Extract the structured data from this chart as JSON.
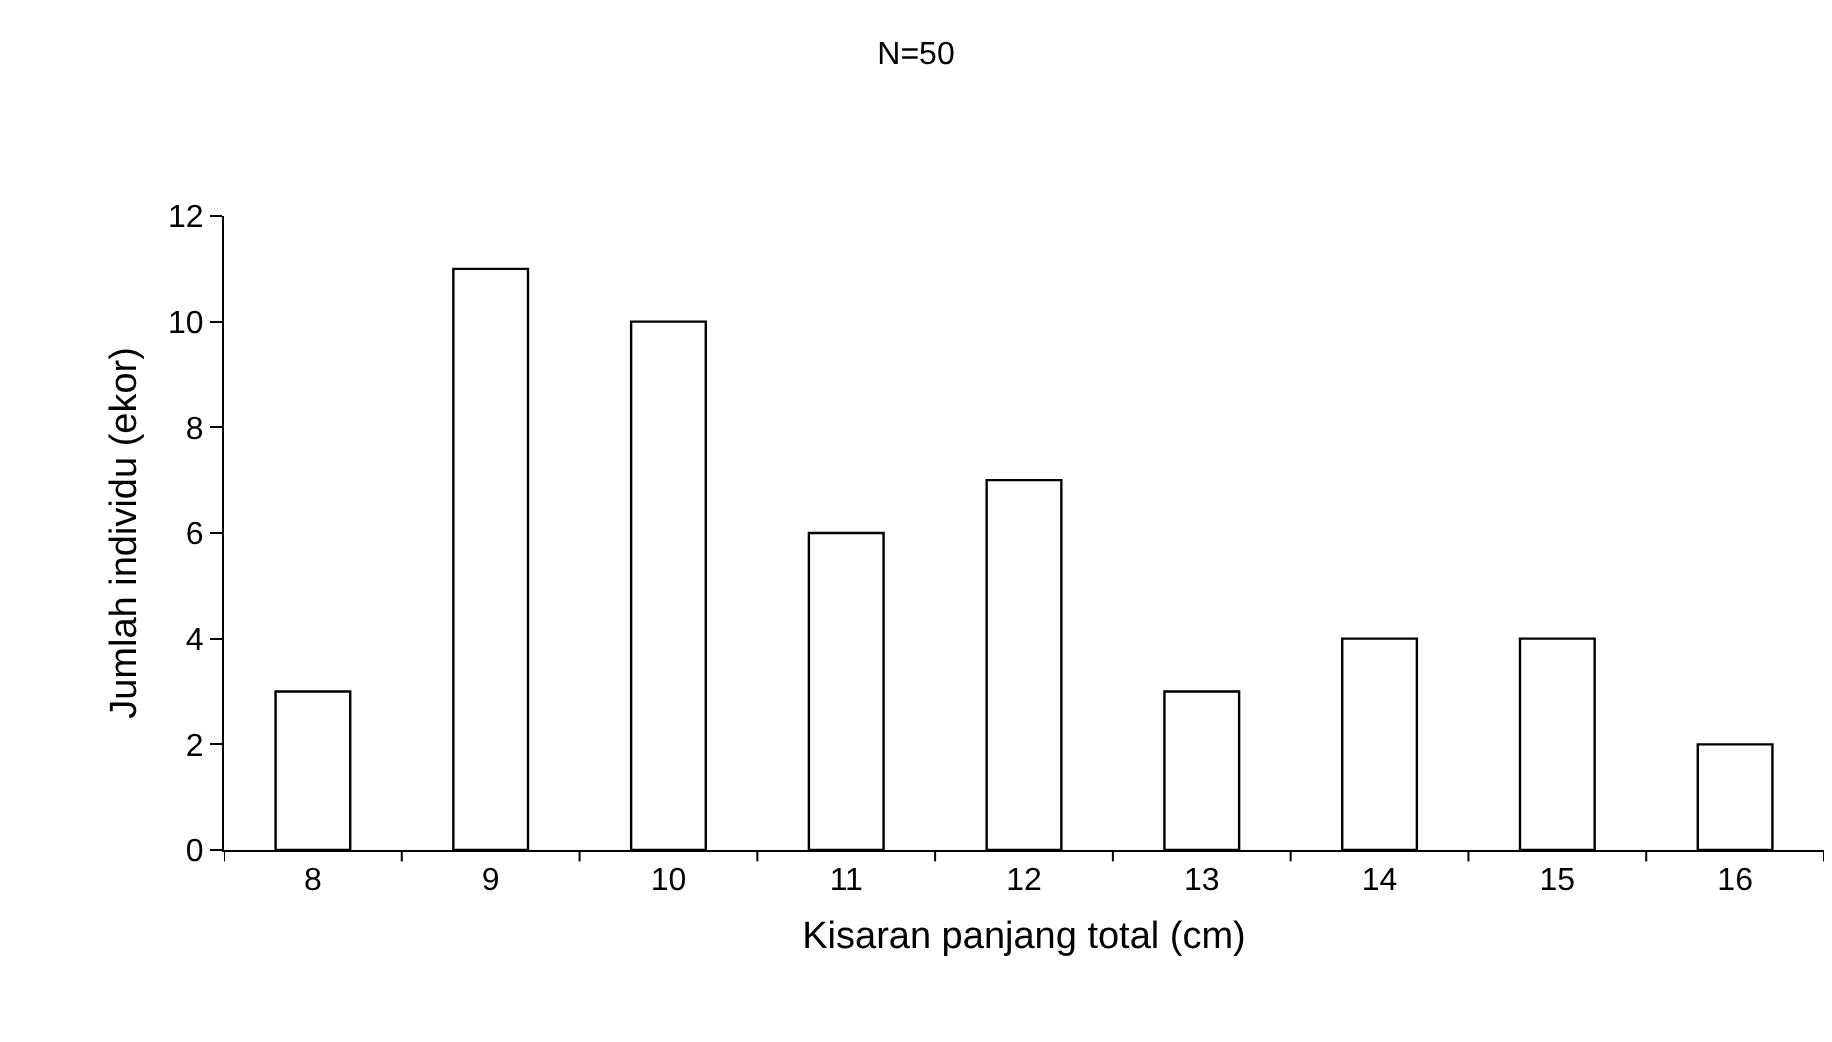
{
  "chart_data": {
    "type": "bar",
    "title": "N=50",
    "xlabel": "Kisaran panjang total (cm)",
    "ylabel": "Jumlah individu (ekor)",
    "categories": [
      "8",
      "9",
      "10",
      "11",
      "12",
      "13",
      "14",
      "15",
      "16"
    ],
    "values": [
      3,
      11,
      10,
      6,
      7,
      3,
      4,
      4,
      2
    ],
    "color": "#ffffff",
    "ylim": [
      0,
      12
    ],
    "yticks": [
      0,
      2,
      4,
      6,
      8,
      10,
      12
    ],
    "grid": false
  }
}
